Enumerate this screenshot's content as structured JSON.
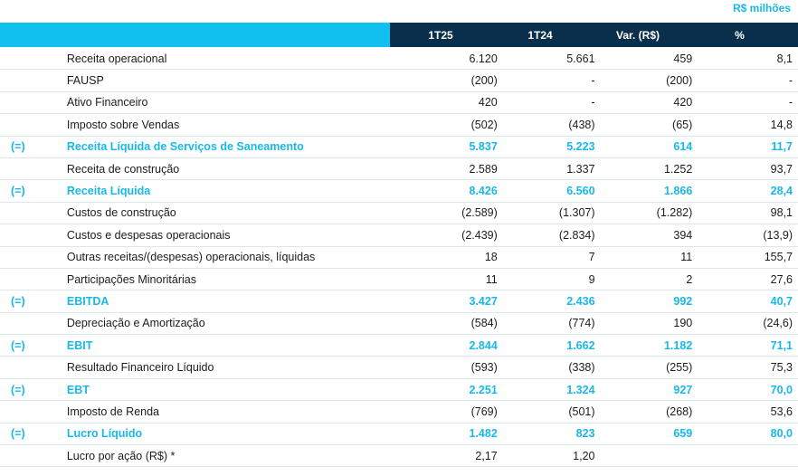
{
  "unit_label": "R$ milhões",
  "columns": [
    "1T25",
    "1T24",
    "Var. (R$)",
    "%"
  ],
  "rows": [
    {
      "pre": "",
      "label": "Receita operacional",
      "v": [
        "6.120",
        "5.661",
        "459",
        "8,1"
      ],
      "hl": false
    },
    {
      "pre": "",
      "label": "FAUSP",
      "v": [
        "(200)",
        "-",
        "(200)",
        "-"
      ],
      "hl": false
    },
    {
      "pre": "",
      "label": "Ativo Financeiro",
      "v": [
        "420",
        "-",
        "420",
        "-"
      ],
      "hl": false
    },
    {
      "pre": "",
      "label": "Imposto sobre Vendas",
      "v": [
        "(502)",
        "(438)",
        "(65)",
        "14,8"
      ],
      "hl": false
    },
    {
      "pre": "(=)",
      "label": "Receita Líquida de Serviços de Saneamento",
      "v": [
        "5.837",
        "5.223",
        "614",
        "11,7"
      ],
      "hl": true
    },
    {
      "pre": "",
      "label": "Receita de construção",
      "v": [
        "2.589",
        "1.337",
        "1.252",
        "93,7"
      ],
      "hl": false
    },
    {
      "pre": "(=)",
      "label": "Receita Líquida",
      "v": [
        "8.426",
        "6.560",
        "1.866",
        "28,4"
      ],
      "hl": true
    },
    {
      "pre": "",
      "label": "Custos de construção",
      "v": [
        "(2.589)",
        "(1.307)",
        "(1.282)",
        "98,1"
      ],
      "hl": false
    },
    {
      "pre": "",
      "label": "Custos e despesas operacionais",
      "v": [
        "(2.439)",
        "(2.834)",
        "394",
        "(13,9)"
      ],
      "hl": false
    },
    {
      "pre": "",
      "label": "Outras receitas/(despesas) operacionais, líquidas",
      "v": [
        "18",
        "7",
        "11",
        "155,7"
      ],
      "hl": false
    },
    {
      "pre": "",
      "label": "Participações Minoritárias",
      "v": [
        "11",
        "9",
        "2",
        "27,6"
      ],
      "hl": false
    },
    {
      "pre": "(=)",
      "label": "EBITDA",
      "v": [
        "3.427",
        "2.436",
        "992",
        "40,7"
      ],
      "hl": true
    },
    {
      "pre": "",
      "label": "Depreciação e Amortização",
      "v": [
        "(584)",
        "(774)",
        "190",
        "(24,6)"
      ],
      "hl": false
    },
    {
      "pre": "(=)",
      "label": "EBIT",
      "v": [
        "2.844",
        "1.662",
        "1.182",
        "71,1"
      ],
      "hl": true
    },
    {
      "pre": "",
      "label": "Resultado Financeiro Líquido",
      "v": [
        "(593)",
        "(338)",
        "(255)",
        "75,3"
      ],
      "hl": false
    },
    {
      "pre": "(=)",
      "label": "EBT",
      "v": [
        "2.251",
        "1.324",
        "927",
        "70,0"
      ],
      "hl": true
    },
    {
      "pre": "",
      "label": "Imposto de Renda",
      "v": [
        "(769)",
        "(501)",
        "(268)",
        "53,6"
      ],
      "hl": false
    },
    {
      "pre": "(=)",
      "label": "Lucro Líquido",
      "v": [
        "1.482",
        "823",
        "659",
        "80,0"
      ],
      "hl": true
    },
    {
      "pre": "",
      "label": "Lucro por ação (R$) *",
      "v": [
        "2,17",
        "1,20",
        "",
        ""
      ],
      "hl": false
    }
  ]
}
